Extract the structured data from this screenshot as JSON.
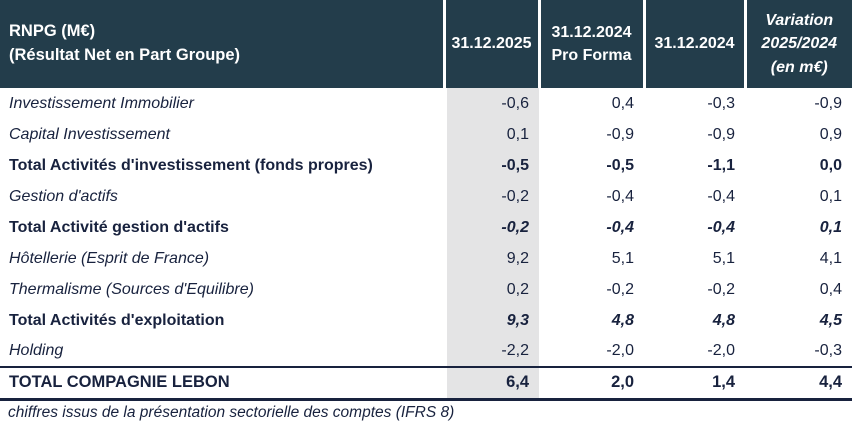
{
  "table": {
    "title_line1": "RNPG (M€)",
    "title_line2": "(Résultat Net en Part Groupe)",
    "columns": [
      {
        "lines": [
          "31.12.2025"
        ]
      },
      {
        "lines": [
          "31.12.2024",
          "Pro Forma"
        ]
      },
      {
        "lines": [
          "31.12.2024"
        ]
      },
      {
        "lines": [
          "Variation",
          "2025/2024",
          "(en m€)"
        ]
      }
    ],
    "rows": [
      {
        "label": "Investissement Immobilier",
        "values": [
          "-0,6",
          "0,4",
          "-0,3",
          "-0,9"
        ]
      },
      {
        "label": "Capital Investissement",
        "values": [
          "0,1",
          "-0,9",
          "-0,9",
          "0,9"
        ]
      },
      {
        "label": "Total Activités d'investissement (fonds propres)",
        "values": [
          "-0,5",
          "-0,5",
          "-1,1",
          "0,0"
        ]
      },
      {
        "label": "Gestion d'actifs",
        "values": [
          "-0,2",
          "-0,4",
          "-0,4",
          "0,1"
        ]
      },
      {
        "label": "Total Activité gestion d'actifs",
        "values": [
          "-0,2",
          "-0,4",
          "-0,4",
          "0,1"
        ]
      },
      {
        "label": "Hôtellerie (Esprit de France)",
        "values": [
          "9,2",
          "5,1",
          "5,1",
          "4,1"
        ]
      },
      {
        "label": "Thermalisme (Sources d'Equilibre)",
        "values": [
          "0,2",
          "-0,2",
          "-0,2",
          "0,4"
        ]
      },
      {
        "label": "Total Activités d'exploitation",
        "values": [
          "9,3",
          "4,8",
          "4,8",
          "4,5"
        ]
      },
      {
        "label": "Holding",
        "values": [
          "-2,2",
          "-2,0",
          "-2,0",
          "-0,3"
        ]
      },
      {
        "label": "TOTAL COMPAGNIE LEBON",
        "values": [
          "6,4",
          "2,0",
          "1,4",
          "4,4"
        ]
      }
    ],
    "footnote": "chiffres issus de la présentation sectorielle des comptes (IFRS 8)",
    "colors": {
      "header_background": "#233D4B",
      "header_text": "#FFFFFF",
      "body_text": "#18223E",
      "shaded_column_background": "#E4E4E5",
      "total_rule": "#18223E"
    }
  }
}
